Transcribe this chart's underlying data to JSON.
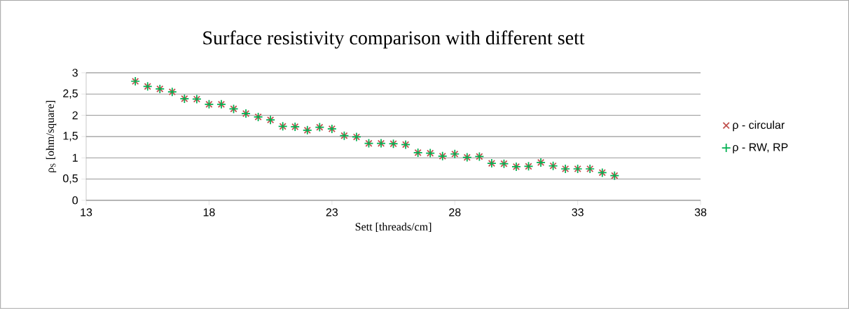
{
  "chart_data": {
    "type": "scatter",
    "title": "Surface resistivity comparison with different sett",
    "xlabel": "Sett [threads/cm]",
    "ylabel": "ρ$_{S}$ [ohm/square]",
    "x": [
      15,
      15.5,
      16,
      16.5,
      17,
      17.5,
      18,
      18.5,
      19,
      19.5,
      20,
      20.5,
      21,
      21.5,
      22,
      22.5,
      23,
      23.5,
      24,
      24.5,
      25,
      25.5,
      26,
      26.5,
      27,
      27.5,
      28,
      28.5,
      29,
      29.5,
      30,
      30.5,
      31,
      31.5,
      32,
      32.5,
      33,
      33.5,
      34,
      34.5
    ],
    "series": [
      {
        "name": "ρ - circular",
        "color": "#c0504d",
        "marker": "cross",
        "values": [
          2.8,
          2.68,
          2.62,
          2.55,
          2.39,
          2.38,
          2.26,
          2.26,
          2.15,
          2.04,
          1.96,
          1.89,
          1.74,
          1.73,
          1.65,
          1.72,
          1.68,
          1.52,
          1.49,
          1.34,
          1.34,
          1.33,
          1.31,
          1.12,
          1.11,
          1.04,
          1.09,
          1.01,
          1.03,
          0.87,
          0.86,
          0.79,
          0.8,
          0.89,
          0.81,
          0.74,
          0.74,
          0.74,
          0.65,
          0.58
        ]
      },
      {
        "name": "ρ - RW, RP",
        "color": "#00b050",
        "marker": "plus",
        "values": [
          2.8,
          2.68,
          2.62,
          2.55,
          2.39,
          2.38,
          2.26,
          2.26,
          2.15,
          2.04,
          1.96,
          1.89,
          1.74,
          1.73,
          1.65,
          1.72,
          1.68,
          1.52,
          1.49,
          1.34,
          1.34,
          1.33,
          1.31,
          1.12,
          1.11,
          1.04,
          1.09,
          1.01,
          1.03,
          0.87,
          0.86,
          0.79,
          0.8,
          0.89,
          0.81,
          0.74,
          0.74,
          0.74,
          0.65,
          0.58
        ]
      }
    ],
    "xlim": [
      13,
      38
    ],
    "ylim": [
      0,
      3
    ],
    "xticks": [
      13,
      18,
      23,
      28,
      33,
      38
    ],
    "yticks": [
      0,
      {
        "value": 0.5,
        "label": "0,5"
      },
      1,
      {
        "value": 1.5,
        "label": "1,5"
      },
      2,
      {
        "value": 2.5,
        "label": "2,5"
      },
      3
    ],
    "grid": "y",
    "legend": "right"
  }
}
